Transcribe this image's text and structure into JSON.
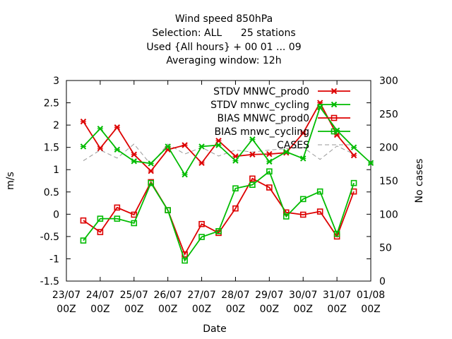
{
  "chart_data": {
    "type": "line",
    "title_lines": [
      "Wind speed 850hPa",
      "Selection: ALL      25 stations",
      "Used {All hours} + 00 01 ... 09",
      "Averaging window: 12h"
    ],
    "xlabel": "Date",
    "ylabel": "m/s",
    "y2label": "No cases",
    "x_ticks": [
      {
        "x": 0,
        "l1": "23/07",
        "l2": "00Z"
      },
      {
        "x": 1,
        "l1": "24/07",
        "l2": "00Z"
      },
      {
        "x": 2,
        "l1": "25/07",
        "l2": "00Z"
      },
      {
        "x": 3,
        "l1": "26/07",
        "l2": "00Z"
      },
      {
        "x": 4,
        "l1": "27/07",
        "l2": "00Z"
      },
      {
        "x": 5,
        "l1": "28/07",
        "l2": "00Z"
      },
      {
        "x": 6,
        "l1": "29/07",
        "l2": "00Z"
      },
      {
        "x": 7,
        "l1": "30/07",
        "l2": "00Z"
      },
      {
        "x": 8,
        "l1": "31/07",
        "l2": "00Z"
      },
      {
        "x": 9,
        "l1": "01/08",
        "l2": "00Z"
      }
    ],
    "xlim": [
      0,
      9
    ],
    "ylim": [
      -1.5,
      3
    ],
    "y_ticks": [
      "-1.5",
      "-1",
      "-0.5",
      "0",
      "0.5",
      "1",
      "1.5",
      "2",
      "2.5",
      "3"
    ],
    "y2lim": [
      0,
      300
    ],
    "y2_ticks": [
      "0",
      "50",
      "100",
      "150",
      "200",
      "250",
      "300"
    ],
    "x": [
      0.5,
      1.0,
      1.5,
      2.0,
      2.5,
      3.0,
      3.5,
      4.0,
      4.5,
      5.0,
      5.5,
      6.0,
      6.5,
      7.0,
      7.5,
      8.0,
      8.5,
      9.0
    ],
    "series": [
      {
        "name": "STDV MNWC_prod0",
        "color": "#dd0000",
        "marker": "x",
        "axis": "y",
        "values": [
          2.08,
          1.48,
          1.95,
          1.34,
          0.97,
          1.45,
          1.55,
          1.15,
          1.65,
          1.3,
          1.34,
          1.35,
          1.38,
          1.82,
          2.5,
          1.78,
          1.32,
          null
        ]
      },
      {
        "name": "STDV mnwc_cycling",
        "color": "#00bb00",
        "marker": "x",
        "axis": "y",
        "values": [
          1.52,
          1.92,
          1.45,
          1.19,
          1.14,
          1.52,
          0.89,
          1.52,
          1.55,
          1.2,
          1.68,
          1.18,
          1.4,
          1.25,
          2.4,
          1.88,
          1.5,
          1.15
        ]
      },
      {
        "name": "BIAS MNWC_prod0",
        "color": "#dd0000",
        "marker": "square",
        "axis": "y",
        "values": [
          -0.14,
          -0.4,
          0.15,
          -0.01,
          0.72,
          0.09,
          -0.9,
          -0.22,
          -0.42,
          0.13,
          0.8,
          0.6,
          0.04,
          -0.01,
          0.06,
          -0.5,
          0.51,
          null
        ]
      },
      {
        "name": "BIAS mnwc_cycling",
        "color": "#00bb00",
        "marker": "square",
        "axis": "y",
        "values": [
          -0.59,
          -0.1,
          -0.1,
          -0.2,
          0.7,
          0.09,
          -1.04,
          -0.51,
          -0.38,
          0.58,
          0.66,
          0.96,
          -0.05,
          0.34,
          0.51,
          -0.44,
          0.7,
          null
        ]
      },
      {
        "name": "CASES",
        "color": "#999999",
        "marker": "none",
        "dash": "6,4",
        "axis": "y2",
        "values": [
          180,
          196,
          184,
          205,
          174,
          205,
          190,
          200,
          187,
          196,
          193,
          196,
          198,
          200,
          182,
          202,
          190,
          null
        ]
      }
    ],
    "legend_position": "top-right",
    "grid": false
  }
}
